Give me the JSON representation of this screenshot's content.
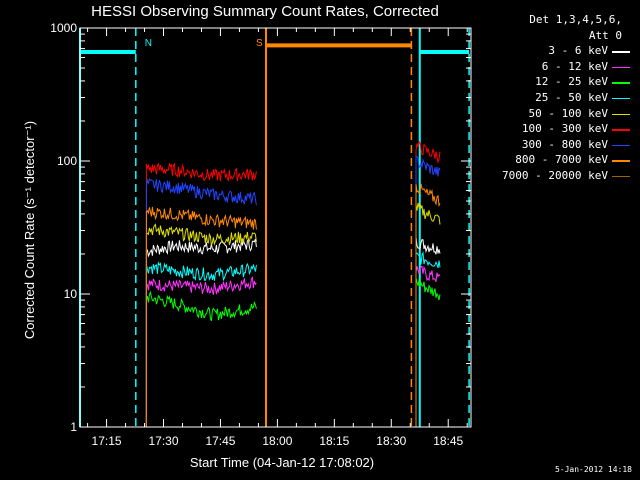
{
  "chart_data": {
    "type": "line",
    "title": "HESSI Observing Summary Count Rates, Corrected",
    "xlabel": "Start Time (04-Jan-12 17:08:02)",
    "ylabel": "Corrected Count Rate (s⁻¹ detector⁻¹)",
    "yscale": "log",
    "ylim": [
      1,
      1000
    ],
    "xlim_minutes_after_1708": [
      0,
      103
    ],
    "xticks": [
      "17:15",
      "17:30",
      "17:45",
      "18:00",
      "18:15",
      "18:30",
      "18:45"
    ],
    "yticks": [
      "1",
      "10",
      "100",
      "1000"
    ],
    "legend_header": [
      "Det 1,3,4,5,6,",
      "Att 0"
    ],
    "legend_position": "outside-right",
    "timestamp": "5-Jan-2012 14:18",
    "series": [
      {
        "name": "3 - 6 keV",
        "color": "#ffffff",
        "segments": [
          {
            "x": [
              17.5,
              25,
              35,
              46.5
            ],
            "y": [
              21,
              23,
              22,
              24
            ]
          },
          {
            "x": [
              88.5,
              91.5,
              95
            ],
            "y": [
              25,
              23,
              22
            ]
          }
        ]
      },
      {
        "name": "6 - 12 keV",
        "color": "#ff33ff",
        "segments": [
          {
            "x": [
              17.5,
              25,
              35,
              46.5
            ],
            "y": [
              12,
              11.5,
              11,
              12.5
            ]
          },
          {
            "x": [
              88.5,
              91.5,
              95
            ],
            "y": [
              15.5,
              14,
              13
            ]
          }
        ]
      },
      {
        "name": "12 - 25 keV",
        "color": "#00ff00",
        "segments": [
          {
            "x": [
              17.5,
              25,
              35,
              46.5
            ],
            "y": [
              9.5,
              8.5,
              7,
              8
            ]
          },
          {
            "x": [
              88.5,
              91.5,
              95
            ],
            "y": [
              12.5,
              11,
              10
            ]
          }
        ]
      },
      {
        "name": "25 - 50 keV",
        "color": "#00ffff",
        "segments": [
          {
            "x": [
              17.5,
              25,
              35,
              46.5
            ],
            "y": [
              16,
              15,
              14,
              15.5
            ]
          },
          {
            "x": [
              88.5,
              91.5,
              95
            ],
            "y": [
              19,
              18,
              17
            ]
          }
        ]
      },
      {
        "name": "50 - 100 keV",
        "color": "#dddd00",
        "segments": [
          {
            "x": [
              17.5,
              25,
              35,
              46.5
            ],
            "y": [
              31,
              29,
              26,
              27
            ]
          },
          {
            "x": [
              88.5,
              91.5,
              95
            ],
            "y": [
              45,
              40,
              36
            ]
          }
        ]
      },
      {
        "name": "100 - 300 keV",
        "color": "#ff0000",
        "segments": [
          {
            "x": [
              17.5,
              25,
              35,
              46.5
            ],
            "y": [
              88,
              86,
              78,
              80
            ]
          },
          {
            "x": [
              88.5,
              91.5,
              95
            ],
            "y": [
              130,
              118,
              108
            ]
          }
        ]
      },
      {
        "name": "300 - 800 keV",
        "color": "#2244ff",
        "segments": [
          {
            "x": [
              17.5,
              25,
              35,
              46.5
            ],
            "y": [
              67,
              64,
              56,
              52
            ]
          },
          {
            "x": [
              88.5,
              91.5,
              95
            ],
            "y": [
              100,
              90,
              80
            ]
          }
        ]
      },
      {
        "name": "800 - 7000 keV",
        "color": "#ff8800",
        "segments": [
          {
            "x": [
              17.5,
              25,
              35,
              46.5
            ],
            "y": [
              42,
              40,
              36,
              34
            ]
          },
          {
            "x": [
              88.5,
              91.5,
              95
            ],
            "y": [
              65,
              56,
              50
            ]
          }
        ]
      },
      {
        "name": "7000 - 20000 keV",
        "color": "#996600",
        "segments": []
      }
    ],
    "flags": {
      "N": {
        "label": "N",
        "color": "#00ffff",
        "level": 660,
        "intervals": [
          [
            0,
            14.7
          ],
          [
            89.5,
            102.5
          ]
        ],
        "solid_at": [
          0,
          89.5
        ],
        "dashed_at": [
          14.7,
          102.5
        ]
      },
      "S": {
        "label": "S",
        "color": "#ff8800",
        "level": 740,
        "intervals": [
          [
            49,
            87.3
          ]
        ],
        "solid_at": [
          49
        ],
        "dashed_at": [
          87.3
        ]
      }
    }
  }
}
